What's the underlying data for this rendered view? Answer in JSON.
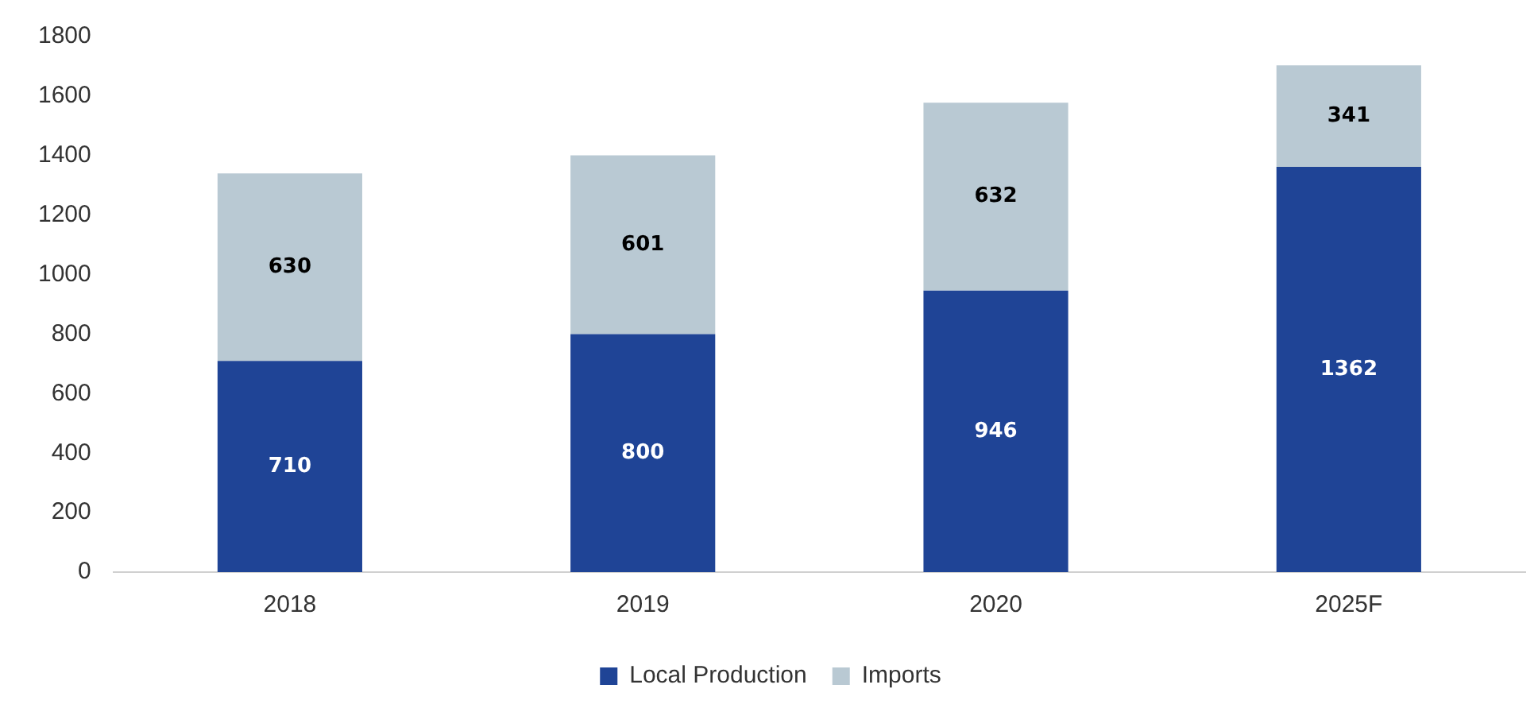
{
  "chart_data": {
    "type": "bar",
    "categories": [
      "2018",
      "2019",
      "2020",
      "2025F"
    ],
    "stacked": true,
    "series": [
      {
        "name": "Local Production",
        "color": "#1f4496",
        "values": [
          710,
          800,
          946,
          1362
        ]
      },
      {
        "name": "Imports",
        "color": "#b9c9d3",
        "values": [
          630,
          601,
          632,
          341
        ]
      }
    ],
    "ylim": [
      0,
      1800
    ],
    "yticks": [
      0,
      200,
      400,
      600,
      800,
      1000,
      1200,
      1400,
      1600,
      1800
    ],
    "grid": false,
    "legend": "bottom",
    "data_labels": true
  }
}
